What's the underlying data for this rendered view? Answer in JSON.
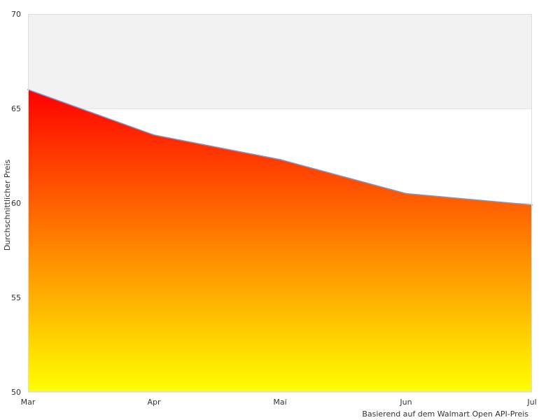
{
  "chart_data": {
    "type": "area",
    "categories": [
      "Mar",
      "Apr",
      "Mai",
      "Jun",
      "Jul"
    ],
    "series": [
      {
        "values": [
          66.0,
          63.6,
          62.3,
          60.5,
          59.9
        ]
      }
    ],
    "ylabel": "Durchschnittlicher Preis",
    "xlabel": "Basierend auf dem Walmart Open API-Preis",
    "ylim": [
      50,
      70
    ],
    "yticks": [
      50,
      55,
      60,
      65,
      70
    ],
    "grid": true,
    "band": {
      "from": 65,
      "to": 70,
      "color": "#f2f2f2"
    },
    "colors": {
      "fill_top": "#ff0000",
      "fill_bottom": "#ffff00",
      "line": "#6f9fd8",
      "plot_border": "#dddddd",
      "text": "#333333"
    }
  }
}
